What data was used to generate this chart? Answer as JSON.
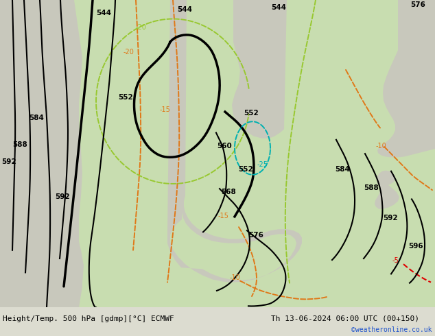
{
  "title_left": "Height/Temp. 500 hPa [gdmp][°C] ECMWF",
  "title_right": "Th 13-06-2024 06:00 UTC (00+150)",
  "credit": "©weatheronline.co.uk",
  "fig_width": 6.34,
  "fig_height": 4.9,
  "dpi": 100,
  "land_color": "#c8ddb0",
  "sea_color": "#c8c8bc",
  "bg_color": "#dcdcd0",
  "footer_bg": "#dcdcd0",
  "contour_color": "#000000",
  "orange_color": "#e07818",
  "green_color": "#98c830",
  "cyan_color": "#00b0b0",
  "red_color": "#e00000"
}
